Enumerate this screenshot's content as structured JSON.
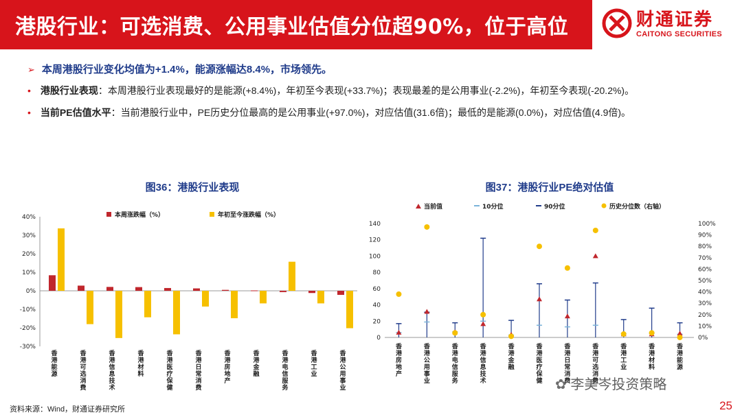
{
  "header": {
    "title": "港股行业：可选消费、公用事业估值分位超90%，位于高位"
  },
  "logo": {
    "cn": "财通证券",
    "en": "CAITONG SECURITIES"
  },
  "bullets": {
    "headline": "本周港股行业变化均值为+1.4%，能源涨幅达8.4%，市场领先。",
    "item1_label": "港股行业表现",
    "item1_text": "：本周港股行业表现最好的是能源(+8.4%)，年初至今表现(+33.7%)；表现最差的是公用事业(-2.2%)，年初至今表现(-20.2%)。",
    "item2_label": "当前PE估值水平",
    "item2_text": "：当前港股行业中，PE历史分位最高的是公用事业(+97.0%)，对应估值(31.6倍)；最低的是能源(0.0%)，对应估值(4.9倍)。"
  },
  "chart_data": [
    {
      "type": "bar",
      "title": "图36：港股行业表现",
      "categories": [
        "香港能源",
        "香港可选消费",
        "香港信息技术",
        "香港材料",
        "香港医疗保健",
        "香港日常消费",
        "香港房地产",
        "香港金融",
        "香港电信服务",
        "香港工业",
        "香港公用事业"
      ],
      "series": [
        {
          "name": "本周涨跌幅（%）",
          "color": "#c0272d",
          "values": [
            8.4,
            2.8,
            2.1,
            2.0,
            1.5,
            1.3,
            0.5,
            0.2,
            -0.7,
            -1.2,
            -2.2
          ]
        },
        {
          "name": "年初至今涨跌幅（%）",
          "color": "#f6c000",
          "values": [
            33.7,
            -18.0,
            -25.5,
            -14.3,
            -23.5,
            -8.5,
            -14.8,
            -6.8,
            15.7,
            -6.8,
            -20.2
          ]
        }
      ],
      "ylim": [
        -30,
        40
      ],
      "yticks": [
        "-30%",
        "-20%",
        "-10%",
        "0%",
        "10%",
        "20%",
        "30%",
        "40%"
      ]
    },
    {
      "type": "scatter",
      "title": "图37：港股行业PE绝对估值",
      "categories": [
        "香港房地产",
        "香港公用事业",
        "香港电信服务",
        "香港信息技术",
        "香港金融",
        "香港医疗保健",
        "香港日常消费",
        "香港可选消费",
        "香港工业",
        "香港材料",
        "香港能源"
      ],
      "legend": [
        "当前值",
        "10分位",
        "90分位",
        "历史分位数（右轴）"
      ],
      "current": [
        6,
        31.6,
        6.5,
        16.5,
        3.5,
        47,
        26,
        100,
        4,
        4,
        4.9
      ],
      "p10": [
        6,
        19,
        7,
        20,
        3,
        15,
        13,
        15,
        5,
        5,
        4
      ],
      "p90": [
        17,
        31,
        18,
        122,
        21,
        66,
        46,
        67,
        22,
        36,
        18
      ],
      "percentile": [
        38,
        97,
        4,
        20,
        1,
        80,
        61,
        94,
        3,
        4,
        0
      ],
      "ylim": [
        0,
        140
      ],
      "yticks": [
        "0",
        "20",
        "40",
        "60",
        "80",
        "100",
        "120",
        "140"
      ],
      "y2lim": [
        0,
        100
      ],
      "y2ticks": [
        "0%",
        "10%",
        "20%",
        "30%",
        "40%",
        "50%",
        "60%",
        "70%",
        "80%",
        "90%",
        "100%"
      ]
    }
  ],
  "footer": {
    "source": "资料来源：Wind，财通证券研究所",
    "page": "25",
    "watermark": "李美岑投资策略"
  }
}
